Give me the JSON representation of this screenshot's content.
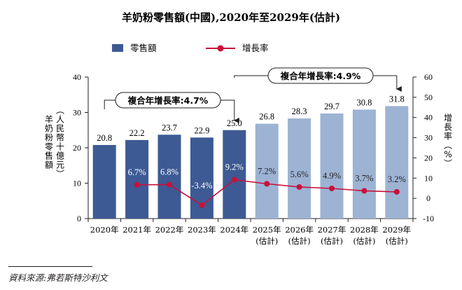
{
  "chart_data": {
    "type": "bar+line",
    "title": "羊奶粉零售額(中國),2020年至2029年(估計)",
    "legend": [
      {
        "name": "零售額",
        "color": "#3d5a94",
        "marker": "bar"
      },
      {
        "name": "增長率",
        "color": "#c8113b",
        "marker": "line-dot"
      }
    ],
    "categories": [
      {
        "line1": "2020年",
        "line2": ""
      },
      {
        "line1": "2021年",
        "line2": ""
      },
      {
        "line1": "2022年",
        "line2": ""
      },
      {
        "line1": "2023年",
        "line2": ""
      },
      {
        "line1": "2024年",
        "line2": ""
      },
      {
        "line1": "2025年",
        "line2": "(估計)"
      },
      {
        "line1": "2026年",
        "line2": "(估計)"
      },
      {
        "line1": "2027年",
        "line2": "(估計)"
      },
      {
        "line1": "2028年",
        "line2": "(估計)"
      },
      {
        "line1": "2029年",
        "line2": "(估計)"
      }
    ],
    "bars": {
      "name": "零售額",
      "values": [
        20.8,
        22.2,
        23.7,
        22.9,
        25.0,
        26.8,
        28.3,
        29.7,
        30.8,
        31.8
      ],
      "labels": [
        "20.8",
        "22.2",
        "23.7",
        "22.9",
        "25.0",
        "26.8",
        "28.3",
        "29.7",
        "30.8",
        "31.8"
      ],
      "color_actual": "#3d5a94",
      "color_estimate": "#9db3d4",
      "estimate_from_index": 5
    },
    "line": {
      "name": "增長率",
      "values": [
        null,
        6.7,
        6.8,
        -3.4,
        9.2,
        7.2,
        5.6,
        4.9,
        3.7,
        3.2
      ],
      "labels": [
        "",
        "6.7%",
        "6.8%",
        "-3.4%",
        "9.2%",
        "7.2%",
        "5.6%",
        "4.9%",
        "3.7%",
        "3.2%"
      ],
      "color": "#c8113b"
    },
    "y_left": {
      "label": "羊奶粉零售額(人民幣十億元)",
      "min": 0,
      "max": 40,
      "ticks": [
        0,
        10,
        20,
        30,
        40
      ]
    },
    "y_right": {
      "label": "增長率(%)",
      "min": -10,
      "max": 60,
      "ticks": [
        -10,
        0,
        10,
        20,
        30,
        40,
        50,
        60
      ]
    },
    "annotations": [
      {
        "text": "複合年增長率:4.7%",
        "from_index": 0,
        "to_index": 4
      },
      {
        "text": "複合年增長率:4.9%",
        "from_index": 4,
        "to_index": 9
      }
    ],
    "grid": false
  },
  "source": "資料來源:弗若斯特沙利文"
}
